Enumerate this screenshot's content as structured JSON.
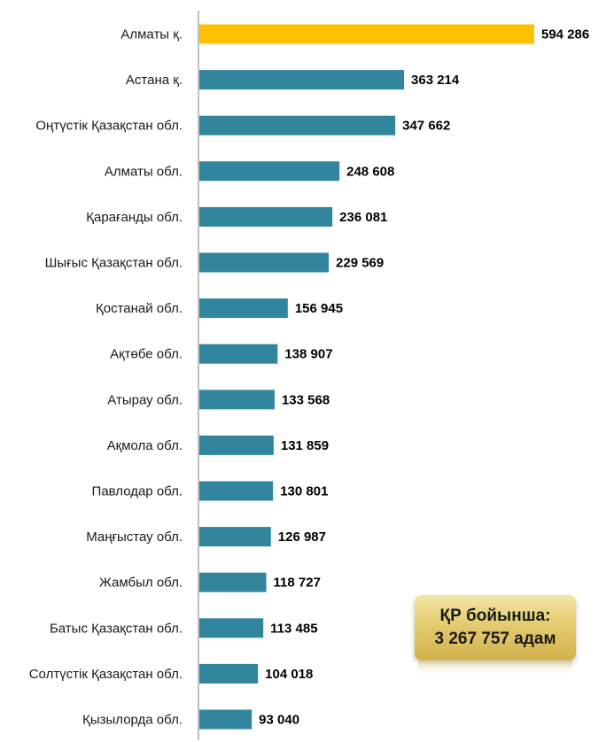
{
  "chart_data": {
    "type": "bar",
    "orientation": "horizontal",
    "categories": [
      "Алматы қ.",
      "Астана қ.",
      "Оңтүстік Қазақстан  обл.",
      "Алматы обл.",
      "Қарағанды обл.",
      "Шығыс Қазақстан  обл.",
      "Қостанай обл.",
      "Ақтөбе обл.",
      "Атырау обл.",
      "Ақмола обл.",
      "Павлодар обл.",
      "Маңғыстау обл.",
      "Жамбыл обл.",
      "Батыс Қазақстан  обл.",
      "Солтүстік Қазақстан  обл.",
      "Қызылорда обл."
    ],
    "values": [
      594286,
      363214,
      347662,
      248608,
      236081,
      229569,
      156945,
      138907,
      133568,
      131859,
      130801,
      126987,
      118727,
      113485,
      104018,
      93040
    ],
    "value_labels": [
      "594 286",
      "363 214",
      "347 662",
      "248 608",
      "236 081",
      "229 569",
      "156 945",
      "138 907",
      "133 568",
      "131 859",
      "130 801",
      "126 987",
      "118 727",
      "113 485",
      "104 018",
      "93 040"
    ],
    "highlight_index": 0,
    "colors": {
      "bar": "#31859c",
      "highlight": "#ffc000",
      "axis": "#7f7f7f"
    },
    "title": "",
    "xlabel": "",
    "ylabel": "",
    "xlim": [
      0,
      650000
    ],
    "grid": false,
    "legend": "none"
  },
  "summary": {
    "line1": "ҚР бойынша:",
    "line2": "3 267 757 адам"
  }
}
